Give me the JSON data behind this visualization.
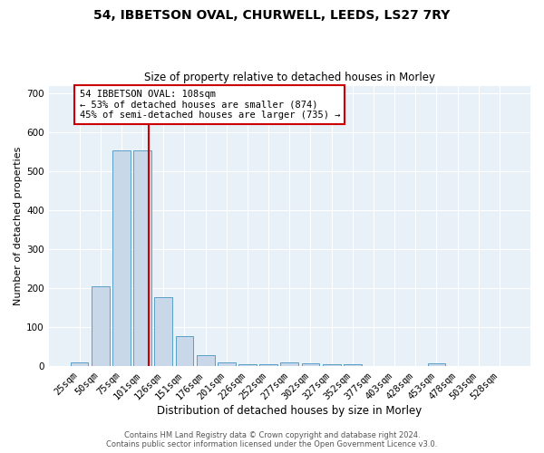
{
  "title1": "54, IBBETSON OVAL, CHURWELL, LEEDS, LS27 7RY",
  "title2": "Size of property relative to detached houses in Morley",
  "xlabel": "Distribution of detached houses by size in Morley",
  "ylabel": "Number of detached properties",
  "categories": [
    "25sqm",
    "50sqm",
    "75sqm",
    "101sqm",
    "126sqm",
    "151sqm",
    "176sqm",
    "201sqm",
    "226sqm",
    "252sqm",
    "277sqm",
    "302sqm",
    "327sqm",
    "352sqm",
    "377sqm",
    "403sqm",
    "428sqm",
    "453sqm",
    "478sqm",
    "503sqm",
    "528sqm"
  ],
  "values": [
    10,
    205,
    555,
    555,
    178,
    78,
    28,
    10,
    6,
    6,
    10,
    8,
    6,
    5,
    0,
    0,
    0,
    8,
    0,
    0,
    0
  ],
  "bar_color": "#c8d8e8",
  "bar_edge_color": "#5a9fc8",
  "bar_width": 0.85,
  "annotation_text": "54 IBBETSON OVAL: 108sqm\n← 53% of detached houses are smaller (874)\n45% of semi-detached houses are larger (735) →",
  "annotation_box_color": "#ffffff",
  "annotation_box_edgecolor": "#cc0000",
  "red_line_color": "#cc0000",
  "ylim": [
    0,
    720
  ],
  "yticks": [
    0,
    100,
    200,
    300,
    400,
    500,
    600,
    700
  ],
  "background_color": "#e8f0f8",
  "footer_text": "Contains HM Land Registry data © Crown copyright and database right 2024.\nContains public sector information licensed under the Open Government Licence v3.0.",
  "title1_fontsize": 10,
  "title2_fontsize": 8.5,
  "xlabel_fontsize": 8.5,
  "ylabel_fontsize": 8,
  "tick_fontsize": 7.5,
  "annotation_fontsize": 7.5,
  "footer_fontsize": 6
}
